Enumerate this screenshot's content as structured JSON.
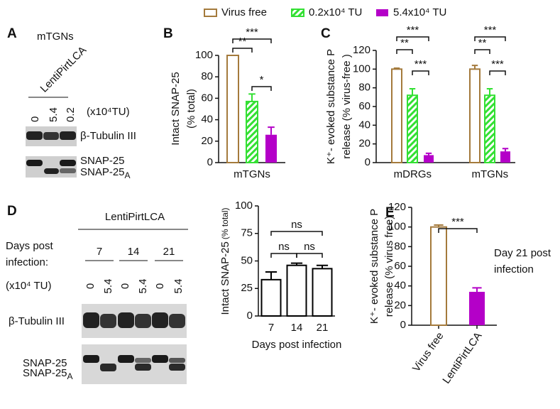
{
  "panel_labels": [
    "A",
    "B",
    "C",
    "D",
    "E"
  ],
  "legend": [
    {
      "name": "Virus free",
      "color": "#a47a3c",
      "style": "outline"
    },
    {
      "name": "0.2x10⁴ TU",
      "color": "#33e033",
      "style": "hatch"
    },
    {
      "name": "5.4x10⁴ TU",
      "color": "#b400c8",
      "style": "solid"
    }
  ],
  "panel_a": {
    "cell": "mTGNs",
    "construct": "LentiPirtLCA",
    "lanes": [
      "0",
      "5.4",
      "0.2"
    ],
    "dose_unit": "(x10⁴TU)",
    "bands": [
      "β-Tubulin III",
      "SNAP-25",
      {
        "text": "SNAP-25",
        "sub": "A"
      }
    ]
  },
  "panel_d_blot": {
    "construct": "LentiPirtLCA",
    "days_label": [
      "Days post",
      "infection:"
    ],
    "days": [
      "7",
      "14",
      "21"
    ],
    "dose_unit": "(x10⁴ TU)",
    "lanes": [
      "0",
      "5.4",
      "0",
      "5.4",
      "0",
      "5.4"
    ],
    "bands": [
      "β-Tubulin III",
      "SNAP-25",
      {
        "text": "SNAP-25",
        "sub": "A"
      }
    ]
  },
  "chart_data": [
    {
      "type": "bar",
      "ylabel": [
        "Intact SNAP-25",
        "(% total)"
      ],
      "categories": [
        "mTGNs"
      ],
      "series": [
        {
          "color": "#a47a3c",
          "style": "outline",
          "values": [
            100
          ],
          "errors": [
            0
          ]
        },
        {
          "color": "#33e033",
          "style": "hatch",
          "values": [
            57
          ],
          "errors": [
            7
          ]
        },
        {
          "color": "#b400c8",
          "style": "solid",
          "values": [
            26
          ],
          "errors": [
            7
          ]
        }
      ],
      "ylim": [
        0,
        100
      ],
      "yticks": [
        0,
        20,
        40,
        60,
        80,
        100
      ],
      "significance": [
        "**",
        "***",
        "*"
      ]
    },
    {
      "type": "bar",
      "ylabel": [
        "K⁺- evoked substance P",
        "release (% virus-free )"
      ],
      "categories": [
        "mDRGs",
        "mTGNs"
      ],
      "series": [
        {
          "color": "#a47a3c",
          "style": "outline",
          "values": [
            100,
            100
          ],
          "errors": [
            1,
            4
          ]
        },
        {
          "color": "#33e033",
          "style": "hatch",
          "values": [
            72,
            72
          ],
          "errors": [
            7,
            7
          ]
        },
        {
          "color": "#b400c8",
          "style": "solid",
          "values": [
            8,
            12
          ],
          "errors": [
            2,
            3
          ]
        }
      ],
      "ylim": [
        0,
        120
      ],
      "yticks": [
        0,
        20,
        40,
        60,
        80,
        100,
        120
      ],
      "significance": [
        "**",
        "***",
        "***",
        "**",
        "***",
        "***"
      ]
    },
    {
      "type": "bar",
      "ylabel": {
        "text": "Intact SNAP-25",
        "small": "(% total)"
      },
      "xlabel": "Days post infection",
      "categories": [
        "7",
        "14",
        "21"
      ],
      "values": [
        33,
        46,
        43
      ],
      "errors": [
        7,
        2,
        3
      ],
      "color": "#000000",
      "style": "outline",
      "ylim": [
        0,
        100
      ],
      "yticks": [
        0,
        25,
        50,
        75,
        100
      ],
      "significance": [
        "ns",
        "ns",
        "ns"
      ]
    },
    {
      "type": "bar",
      "ylabel": [
        "K⁺- evoked substance P",
        "release (% virus free)"
      ],
      "categories": [
        "Virus free",
        "LentiPirtLCA"
      ],
      "values": [
        100,
        34
      ],
      "errors": [
        2,
        4
      ],
      "colors": [
        "#a47a3c",
        "#b400c8"
      ],
      "styles": [
        "outline",
        "solid"
      ],
      "ylim": [
        0,
        120
      ],
      "yticks": [
        0,
        20,
        40,
        60,
        80,
        100,
        120
      ],
      "significance": [
        "***"
      ],
      "annotation": [
        "Day 21 post",
        "infection"
      ]
    }
  ]
}
